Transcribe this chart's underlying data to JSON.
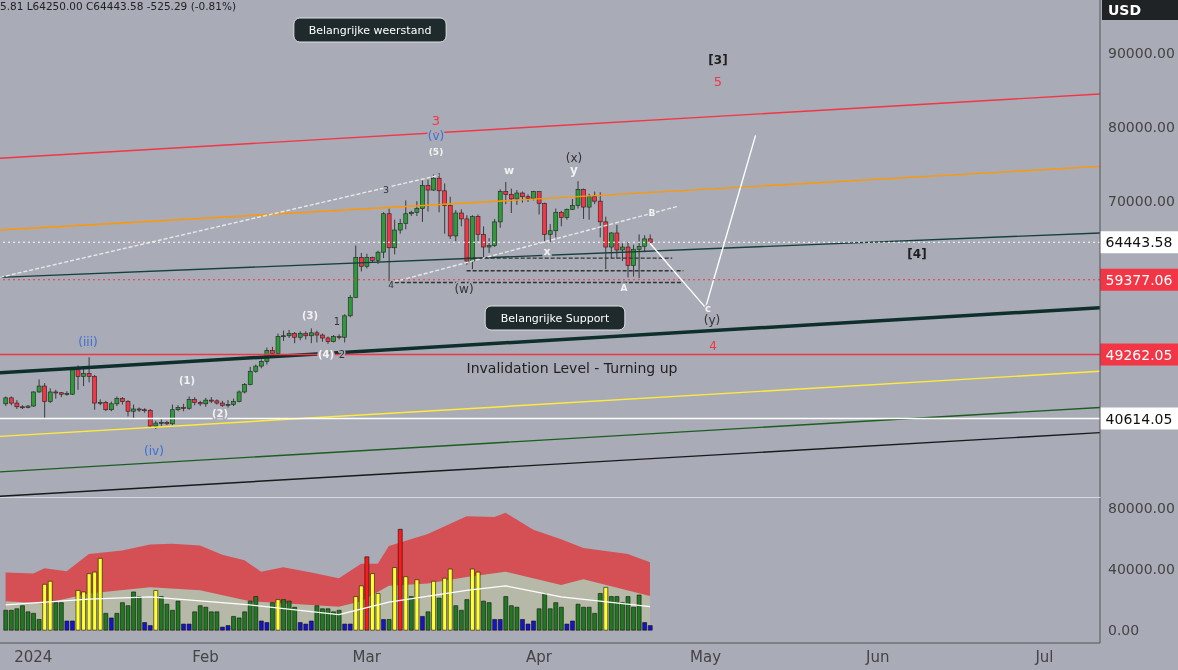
{
  "chart_data": [
    {
      "type": "candlestick",
      "title": "5.81 L64250.00 C64443.58 -525.29 (-0.81%)",
      "ylabel": "USD",
      "xlim": [
        "2023-12-26",
        "2024-07-11"
      ],
      "ylim": [
        30000,
        97200
      ],
      "yticks": [
        {
          "value": 70000,
          "label": "70000.00"
        },
        {
          "value": 80000,
          "label": "80000.00"
        },
        {
          "value": 90000,
          "label": "90000.00"
        }
      ],
      "tick_labels": "y",
      "x": [
        "2023-12-27",
        "2023-12-28",
        "2023-12-29",
        "2023-12-30",
        "2023-12-31",
        "2024-01-01",
        "2024-01-02",
        "2024-01-03",
        "2024-01-04",
        "2024-01-05",
        "2024-01-06",
        "2024-01-07",
        "2024-01-08",
        "2024-01-09",
        "2024-01-10",
        "2024-01-11",
        "2024-01-12",
        "2024-01-13",
        "2024-01-14",
        "2024-01-15",
        "2024-01-16",
        "2024-01-17",
        "2024-01-18",
        "2024-01-19",
        "2024-01-20",
        "2024-01-21",
        "2024-01-22",
        "2024-01-23",
        "2024-01-24",
        "2024-01-25",
        "2024-01-26",
        "2024-01-27",
        "2024-01-28",
        "2024-01-29",
        "2024-01-30",
        "2024-01-31",
        "2024-02-01",
        "2024-02-02",
        "2024-02-03",
        "2024-02-04",
        "2024-02-05",
        "2024-02-06",
        "2024-02-07",
        "2024-02-08",
        "2024-02-09",
        "2024-02-10",
        "2024-02-11",
        "2024-02-12",
        "2024-02-13",
        "2024-02-14",
        "2024-02-15",
        "2024-02-16",
        "2024-02-17",
        "2024-02-18",
        "2024-02-19",
        "2024-02-20",
        "2024-02-21",
        "2024-02-22",
        "2024-02-23",
        "2024-02-24",
        "2024-02-25",
        "2024-02-26",
        "2024-02-27",
        "2024-02-28",
        "2024-02-29",
        "2024-03-01",
        "2024-03-02",
        "2024-03-03",
        "2024-03-04",
        "2024-03-05",
        "2024-03-06",
        "2024-03-07",
        "2024-03-08",
        "2024-03-09",
        "2024-03-10",
        "2024-03-11",
        "2024-03-12",
        "2024-03-13",
        "2024-03-14",
        "2024-03-15",
        "2024-03-16",
        "2024-03-17",
        "2024-03-18",
        "2024-03-19",
        "2024-03-20",
        "2024-03-21",
        "2024-03-22",
        "2024-03-23",
        "2024-03-24",
        "2024-03-25",
        "2024-03-26",
        "2024-03-27",
        "2024-03-28",
        "2024-03-29",
        "2024-03-30",
        "2024-03-31",
        "2024-04-01",
        "2024-04-02",
        "2024-04-03",
        "2024-04-04",
        "2024-04-05",
        "2024-04-06",
        "2024-04-07",
        "2024-04-08",
        "2024-04-09",
        "2024-04-10",
        "2024-04-11",
        "2024-04-12",
        "2024-04-13",
        "2024-04-14",
        "2024-04-15",
        "2024-04-16",
        "2024-04-17",
        "2024-04-18",
        "2024-04-19",
        "2024-04-20",
        "2024-04-21"
      ],
      "ohlc": [
        [
          42600,
          43600,
          42300,
          43400
        ],
        [
          43400,
          43600,
          42400,
          42700
        ],
        [
          42700,
          43100,
          41900,
          42200
        ],
        [
          42200,
          42400,
          41900,
          42100
        ],
        [
          42100,
          42400,
          42000,
          42300
        ],
        [
          42300,
          44300,
          42200,
          44200
        ],
        [
          44200,
          45900,
          44100,
          45000
        ],
        [
          45000,
          45400,
          40700,
          42900
        ],
        [
          42900,
          44700,
          42700,
          44200
        ],
        [
          44200,
          44500,
          43300,
          44100
        ],
        [
          44100,
          44200,
          43500,
          43900
        ],
        [
          43900,
          44300,
          43700,
          44000
        ],
        [
          43900,
          47300,
          43800,
          47200
        ],
        [
          47200,
          47800,
          44500,
          46300
        ],
        [
          46300,
          47300,
          45000,
          46700
        ],
        [
          46700,
          48900,
          45500,
          46300
        ],
        [
          46300,
          46500,
          41800,
          42700
        ],
        [
          42700,
          43200,
          42400,
          42800
        ],
        [
          42800,
          43000,
          41600,
          41800
        ],
        [
          41800,
          42900,
          41600,
          42600
        ],
        [
          42600,
          43600,
          42300,
          43300
        ],
        [
          43300,
          43500,
          42500,
          42900
        ],
        [
          42900,
          43100,
          40900,
          41600
        ],
        [
          41600,
          42500,
          40600,
          41900
        ],
        [
          41900,
          42100,
          41500,
          41800
        ],
        [
          41800,
          42000,
          41400,
          41700
        ],
        [
          41700,
          41900,
          39500,
          39600
        ],
        [
          39600,
          40300,
          39200,
          40000
        ],
        [
          40000,
          40600,
          39600,
          40100
        ],
        [
          40100,
          40300,
          39700,
          39900
        ],
        [
          39900,
          42500,
          39700,
          41800
        ],
        [
          41800,
          42400,
          41600,
          42100
        ],
        [
          42100,
          42600,
          41600,
          42000
        ],
        [
          42000,
          43600,
          41800,
          43200
        ],
        [
          43200,
          43500,
          42400,
          42800
        ],
        [
          42800,
          43000,
          42300,
          42600
        ],
        [
          42600,
          43400,
          42200,
          43100
        ],
        [
          43100,
          43500,
          42700,
          43000
        ],
        [
          43000,
          43200,
          42500,
          42700
        ],
        [
          42700,
          43000,
          42200,
          42400
        ],
        [
          42400,
          43100,
          42100,
          42500
        ],
        [
          42500,
          43300,
          42300,
          42900
        ],
        [
          42900,
          44400,
          42800,
          44200
        ],
        [
          44200,
          45400,
          44000,
          45200
        ],
        [
          45200,
          47600,
          45100,
          47000
        ],
        [
          47000,
          47900,
          46800,
          47700
        ],
        [
          47700,
          48600,
          47400,
          48300
        ],
        [
          48300,
          50200,
          47900,
          49800
        ],
        [
          49800,
          50300,
          48800,
          49400
        ],
        [
          49400,
          52100,
          49200,
          51700
        ],
        [
          51700,
          52500,
          51100,
          51800
        ],
        [
          51800,
          52600,
          51500,
          52100
        ],
        [
          52100,
          52300,
          50800,
          51600
        ],
        [
          51600,
          52400,
          51200,
          52100
        ],
        [
          52100,
          52400,
          51300,
          51800
        ],
        [
          51800,
          52800,
          50800,
          52200
        ],
        [
          52200,
          52500,
          50900,
          51900
        ],
        [
          51900,
          52100,
          51000,
          51500
        ],
        [
          51500,
          51700,
          50700,
          51000
        ],
        [
          51000,
          51900,
          50900,
          51700
        ],
        [
          51700,
          52000,
          51300,
          51600
        ],
        [
          51600,
          54700,
          50900,
          54500
        ],
        [
          54500,
          57300,
          54300,
          57000
        ],
        [
          57000,
          64000,
          56900,
          62400
        ],
        [
          62400,
          63000,
          60500,
          61200
        ],
        [
          61200,
          62900,
          60900,
          62400
        ],
        [
          62400,
          62500,
          61700,
          62000
        ],
        [
          62000,
          63300,
          61500,
          63100
        ],
        [
          63100,
          68500,
          62300,
          68300
        ],
        [
          68300,
          69000,
          59200,
          63700
        ],
        [
          63700,
          67500,
          62800,
          66100
        ],
        [
          66100,
          67600,
          65600,
          67000
        ],
        [
          67000,
          70100,
          66200,
          68300
        ],
        [
          68300,
          68700,
          68000,
          68500
        ],
        [
          68500,
          70000,
          68000,
          69000
        ],
        [
          69000,
          72800,
          67200,
          72100
        ],
        [
          72100,
          72900,
          68600,
          71500
        ],
        [
          71500,
          73600,
          71400,
          73100
        ],
        [
          73100,
          73800,
          68500,
          71400
        ],
        [
          71400,
          72400,
          65600,
          69400
        ],
        [
          69400,
          70600,
          64900,
          65300
        ],
        [
          65300,
          68800,
          64600,
          68400
        ],
        [
          68400,
          68900,
          66600,
          67600
        ],
        [
          67600,
          68100,
          61400,
          61900
        ],
        [
          61900,
          68100,
          60800,
          67900
        ],
        [
          67900,
          68200,
          64600,
          65500
        ],
        [
          65500,
          66600,
          62300,
          63800
        ],
        [
          63800,
          65000,
          63000,
          64000
        ],
        [
          64000,
          67600,
          63800,
          67200
        ],
        [
          67200,
          71600,
          66400,
          71300
        ],
        [
          71300,
          72600,
          69600,
          70900
        ],
        [
          70900,
          71700,
          68400,
          70300
        ],
        [
          70300,
          71500,
          69500,
          71100
        ],
        [
          71100,
          71300,
          69800,
          70600
        ],
        [
          70600,
          70900,
          69900,
          70400
        ],
        [
          70400,
          71400,
          70100,
          71300
        ],
        [
          71300,
          71300,
          68200,
          69700
        ],
        [
          69700,
          69800,
          64600,
          65500
        ],
        [
          65500,
          66900,
          64500,
          66000
        ],
        [
          66000,
          69000,
          65100,
          68500
        ],
        [
          68500,
          68700,
          66600,
          67800
        ],
        [
          67800,
          69000,
          67500,
          68900
        ],
        [
          68900,
          70300,
          68800,
          69400
        ],
        [
          69400,
          72700,
          69000,
          71600
        ],
        [
          71600,
          71700,
          67600,
          69200
        ],
        [
          69200,
          71000,
          67500,
          70600
        ],
        [
          70600,
          71300,
          69600,
          70000
        ],
        [
          70000,
          71200,
          65100,
          67200
        ],
        [
          67200,
          67900,
          60800,
          63800
        ],
        [
          63800,
          65800,
          62300,
          65700
        ],
        [
          65700,
          66800,
          62200,
          63400
        ],
        [
          63400,
          64300,
          61900,
          63800
        ],
        [
          63800,
          64500,
          59700,
          61300
        ],
        [
          61300,
          64100,
          59800,
          63500
        ],
        [
          63500,
          65500,
          59600,
          63900
        ],
        [
          63900,
          65400,
          63100,
          64900
        ],
        [
          64900,
          65500,
          64250,
          64443.58
        ]
      ],
      "series": [
        {
          "type": "line",
          "x": [
            "2023-12-26",
            "2024-07-11"
          ],
          "values": [
            75800,
            84500
          ],
          "color": "#f23645",
          "line_style": "solid"
        },
        {
          "type": "line",
          "x": [
            "2023-12-26",
            "2024-07-11"
          ],
          "values": [
            66100,
            74700
          ],
          "color": "#ff9800",
          "line_style": "solid"
        },
        {
          "type": "line",
          "x": [
            "2023-12-26",
            "2024-07-11"
          ],
          "values": [
            59700,
            65700
          ],
          "color": "#17403b",
          "line_style": "solid"
        },
        {
          "type": "line",
          "x": [
            "2023-12-26",
            "2024-07-11"
          ],
          "values": [
            46800,
            55600
          ],
          "color": "#0f2f2b",
          "line_style": "solid"
        },
        {
          "type": "line",
          "x": [
            "2023-12-26",
            "2024-07-11"
          ],
          "values": [
            38200,
            47000
          ],
          "color": "#ffeb3b",
          "line_style": "solid"
        },
        {
          "type": "line",
          "x": [
            "2023-12-26",
            "2024-07-11"
          ],
          "values": [
            33400,
            42100
          ],
          "color": "#1b5e20",
          "line_style": "solid"
        },
        {
          "type": "line",
          "x": [
            "2023-12-26",
            "2024-07-11"
          ],
          "values": [
            30100,
            38700
          ],
          "color": "#1a1a1a",
          "line_style": "solid"
        },
        {
          "type": "line",
          "x": [
            "2023-12-26",
            "2024-03-14"
          ],
          "values": [
            59700,
            73500
          ],
          "color": "#e8e8e8",
          "line_style": "dashed"
        },
        {
          "type": "line",
          "x": [
            "2024-03-05",
            "2024-04-26"
          ],
          "values": [
            58900,
            69300
          ],
          "color": "#e8e8e8",
          "line_style": "dashed"
        },
        {
          "type": "line",
          "x": [
            "2024-03-19",
            "2024-04-25"
          ],
          "values": [
            62300,
            62300
          ],
          "color": "#333333",
          "line_style": "dashed"
        },
        {
          "type": "line",
          "x": [
            "2024-03-19",
            "2024-04-27"
          ],
          "values": [
            60600,
            60600
          ],
          "color": "#333333",
          "line_style": "dashed"
        },
        {
          "type": "line",
          "x": [
            "2024-03-05",
            "2024-04-27"
          ],
          "values": [
            59000,
            59000
          ],
          "color": "#333333",
          "line_style": "dashed"
        },
        {
          "type": "line",
          "x": [
            "2024-04-21",
            "2024-05-01",
            "2024-05-10"
          ],
          "values": [
            64300,
            55600,
            78900
          ],
          "color": "#ffffff",
          "line_style": "solid"
        }
      ],
      "ref_lines": [
        {
          "axis": "y",
          "value": 64443.58,
          "label": "64443.58",
          "color": "#ffffff",
          "line_style": "dotted"
        },
        {
          "axis": "y",
          "value": 59377.06,
          "label": "59377.06",
          "color": "#f23645",
          "line_style": "dotted"
        },
        {
          "axis": "y",
          "value": 49262.05,
          "label": "49262.05",
          "color": "#f23645",
          "line_style": "solid"
        },
        {
          "axis": "y",
          "value": 40614.05,
          "label": "40614.05",
          "color": "#ffffff",
          "line_style": "solid"
        }
      ],
      "annotations": [
        "Belangrijke weerstand",
        "Belangrijke Support",
        "Invalidation Level - Turning up",
        "[3]",
        "5",
        "3",
        "(v)",
        "(5)",
        "3",
        "w",
        "(x)",
        "y",
        "B",
        "x",
        "(w)",
        "4",
        "A",
        "c",
        "(y)",
        "4",
        "[4]",
        "(iii)",
        "(1)",
        "(2)",
        "(iv)",
        "(3)",
        "1",
        "(4)",
        "2"
      ]
    },
    {
      "type": "bar",
      "xlim": [
        "2023-12-26",
        "2024-07-11"
      ],
      "ylim": [
        -8400,
        86500
      ],
      "xticks": [
        {
          "value": "2024-01-01",
          "label": "2024"
        },
        {
          "value": "2024-02-01",
          "label": "Feb"
        },
        {
          "value": "2024-03-01",
          "label": "Mar"
        },
        {
          "value": "2024-04-01",
          "label": "Apr"
        },
        {
          "value": "2024-05-01",
          "label": "May"
        },
        {
          "value": "2024-06-01",
          "label": "Jun"
        },
        {
          "value": "2024-07-01",
          "label": "Jul"
        }
      ],
      "yticks": [
        {
          "value": 0,
          "label": "0.00"
        },
        {
          "value": 40000,
          "label": "40000.00"
        },
        {
          "value": 80000,
          "label": "80000.00"
        }
      ],
      "x": [
        "2023-12-27",
        "2023-12-28",
        "2023-12-29",
        "2023-12-30",
        "2023-12-31",
        "2024-01-01",
        "2024-01-02",
        "2024-01-03",
        "2024-01-04",
        "2024-01-05",
        "2024-01-06",
        "2024-01-07",
        "2024-01-08",
        "2024-01-09",
        "2024-01-10",
        "2024-01-11",
        "2024-01-12",
        "2024-01-13",
        "2024-01-14",
        "2024-01-15",
        "2024-01-16",
        "2024-01-17",
        "2024-01-18",
        "2024-01-19",
        "2024-01-20",
        "2024-01-21",
        "2024-01-22",
        "2024-01-23",
        "2024-01-24",
        "2024-01-25",
        "2024-01-26",
        "2024-01-27",
        "2024-01-28",
        "2024-01-29",
        "2024-01-30",
        "2024-01-31",
        "2024-02-01",
        "2024-02-02",
        "2024-02-03",
        "2024-02-04",
        "2024-02-05",
        "2024-02-06",
        "2024-02-07",
        "2024-02-08",
        "2024-02-09",
        "2024-02-10",
        "2024-02-11",
        "2024-02-12",
        "2024-02-13",
        "2024-02-14",
        "2024-02-15",
        "2024-02-16",
        "2024-02-17",
        "2024-02-18",
        "2024-02-19",
        "2024-02-20",
        "2024-02-21",
        "2024-02-22",
        "2024-02-23",
        "2024-02-24",
        "2024-02-25",
        "2024-02-26",
        "2024-02-27",
        "2024-02-28",
        "2024-02-29",
        "2024-03-01",
        "2024-03-02",
        "2024-03-03",
        "2024-03-04",
        "2024-03-05",
        "2024-03-06",
        "2024-03-07",
        "2024-03-08",
        "2024-03-09",
        "2024-03-10",
        "2024-03-11",
        "2024-03-12",
        "2024-03-13",
        "2024-03-14",
        "2024-03-15",
        "2024-03-16",
        "2024-03-17",
        "2024-03-18",
        "2024-03-19",
        "2024-03-20",
        "2024-03-21",
        "2024-03-22",
        "2024-03-23",
        "2024-03-24",
        "2024-03-25",
        "2024-03-26",
        "2024-03-27",
        "2024-03-28",
        "2024-03-29",
        "2024-03-30",
        "2024-03-31",
        "2024-04-01",
        "2024-04-02",
        "2024-04-03",
        "2024-04-04",
        "2024-04-05",
        "2024-04-06",
        "2024-04-07",
        "2024-04-08",
        "2024-04-09",
        "2024-04-10",
        "2024-04-11",
        "2024-04-12",
        "2024-04-13",
        "2024-04-14",
        "2024-04-15",
        "2024-04-16",
        "2024-04-17",
        "2024-04-18",
        "2024-04-19",
        "2024-04-20",
        "2024-04-21"
      ],
      "values": [
        13000,
        13000,
        14000,
        16000,
        12000,
        11000,
        7000,
        30000,
        32000,
        18000,
        18000,
        6000,
        6000,
        26000,
        25000,
        37000,
        38000,
        47000,
        11000,
        8000,
        11000,
        18000,
        16000,
        25000,
        22000,
        5000,
        3000,
        26000,
        22000,
        17000,
        13000,
        19000,
        4000,
        4000,
        12000,
        16000,
        15000,
        12000,
        12000,
        2000,
        3000,
        9000,
        8000,
        12000,
        19000,
        22000,
        6000,
        5000,
        18000,
        20000,
        20000,
        19000,
        15000,
        5000,
        4000,
        6000,
        16000,
        14000,
        14000,
        12000,
        13000,
        4000,
        4000,
        22000,
        29000,
        48000,
        37000,
        24000,
        7000,
        7000,
        41000,
        66000,
        35000,
        22000,
        33000,
        9000,
        12000,
        32000,
        21000,
        34000,
        40000,
        16000,
        13000,
        20000,
        40000,
        38000,
        19000,
        18000,
        7000,
        7000,
        22000,
        16000,
        15000,
        7000,
        4000,
        6000,
        14000,
        24000,
        14000,
        18000,
        15000,
        4000,
        6000,
        17000,
        15000,
        15000,
        11000,
        24000,
        28000,
        22000,
        22000,
        18000,
        22000,
        15000,
        23000,
        5000,
        3000
      ],
      "colors": [
        "#1f7a1f",
        "#1f7a1f",
        "#1f7a1f",
        "#1f7a1f",
        "#1f7a1f",
        "#1f7a1f",
        "#1f7a1f",
        "#ffff33",
        "#ffff33",
        "#1f7a1f",
        "#1f7a1f",
        "#1414c8",
        "#1414c8",
        "#ffff33",
        "#ffff33",
        "#ffff33",
        "#ffff33",
        "#ffff33",
        "#1f7a1f",
        "#1414c8",
        "#1f7a1f",
        "#1f7a1f",
        "#1f7a1f",
        "#1f7a1f",
        "#1f7a1f",
        "#1414c8",
        "#1414c8",
        "#ffff33",
        "#1f7a1f",
        "#1f7a1f",
        "#1f7a1f",
        "#1f7a1f",
        "#1414c8",
        "#1414c8",
        "#1f7a1f",
        "#1f7a1f",
        "#1f7a1f",
        "#1f7a1f",
        "#1f7a1f",
        "#1414c8",
        "#1414c8",
        "#1f7a1f",
        "#1f7a1f",
        "#1f7a1f",
        "#1f7a1f",
        "#1f7a1f",
        "#1414c8",
        "#1414c8",
        "#1f7a1f",
        "#ffff33",
        "#1f7a1f",
        "#1f7a1f",
        "#1f7a1f",
        "#1414c8",
        "#1414c8",
        "#1414c8",
        "#1f7a1f",
        "#1f7a1f",
        "#1f7a1f",
        "#1f7a1f",
        "#1f7a1f",
        "#1414c8",
        "#1414c8",
        "#ffff33",
        "#ffff33",
        "#ff1a1a",
        "#ffff33",
        "#ffff33",
        "#1414c8",
        "#1f7a1f",
        "#ffff33",
        "#ff1a1a",
        "#ffff33",
        "#1f7a1f",
        "#ffff33",
        "#1414c8",
        "#1f7a1f",
        "#ffff33",
        "#1f7a1f",
        "#ffff33",
        "#ffff33",
        "#1f7a1f",
        "#1f7a1f",
        "#1f7a1f",
        "#ffff33",
        "#ffff33",
        "#1f7a1f",
        "#1f7a1f",
        "#1414c8",
        "#1414c8",
        "#1f7a1f",
        "#1f7a1f",
        "#1f7a1f",
        "#1414c8",
        "#1414c8",
        "#1414c8",
        "#1f7a1f",
        "#1f7a1f",
        "#1f7a1f",
        "#1f7a1f",
        "#1f7a1f",
        "#1414c8",
        "#1414c8",
        "#1f7a1f",
        "#1f7a1f",
        "#1f7a1f",
        "#1f7a1f",
        "#1f7a1f",
        "#ffff33",
        "#1f7a1f",
        "#1f7a1f",
        "#1f7a1f",
        "#1f7a1f",
        "#1f7a1f",
        "#1f7a1f",
        "#1414c8",
        "#1414c8"
      ],
      "series": [
        {
          "type": "area",
          "color": "#d45055",
          "x": [
            "2023-12-27",
            "2024-01-01",
            "2024-01-03",
            "2024-01-07",
            "2024-01-11",
            "2024-01-17",
            "2024-01-22",
            "2024-01-26",
            "2024-01-31",
            "2024-02-04",
            "2024-02-08",
            "2024-02-11",
            "2024-02-15",
            "2024-02-20",
            "2024-02-25",
            "2024-02-29",
            "2024-03-03",
            "2024-03-05",
            "2024-03-12",
            "2024-03-19",
            "2024-03-24",
            "2024-03-26",
            "2024-03-31",
            "2024-04-05",
            "2024-04-09",
            "2024-04-17",
            "2024-04-21"
          ],
          "values": [
            37700,
            37100,
            40600,
            38600,
            49900,
            52200,
            56000,
            56500,
            55400,
            49300,
            45800,
            38300,
            41200,
            37700,
            33900,
            43500,
            43500,
            55100,
            62900,
            74500,
            74000,
            76900,
            65800,
            59500,
            53700,
            49900,
            44400
          ]
        },
        {
          "type": "area",
          "color": "#b6b9a8",
          "x": [
            "2023-12-27",
            "2024-01-03",
            "2024-01-11",
            "2024-01-22",
            "2024-01-31",
            "2024-02-09",
            "2024-02-20",
            "2024-02-25",
            "2024-02-29",
            "2024-03-05",
            "2024-03-12",
            "2024-03-19",
            "2024-03-26",
            "2024-04-05",
            "2024-04-09",
            "2024-04-21"
          ],
          "values": [
            18900,
            17400,
            24000,
            28100,
            26100,
            18900,
            16500,
            15400,
            18900,
            29000,
            30500,
            34800,
            38300,
            29600,
            33400,
            22300
          ]
        },
        {
          "type": "line",
          "color": "#ffffff",
          "x": [
            "2023-12-27",
            "2024-01-11",
            "2024-01-22",
            "2024-02-09",
            "2024-02-25",
            "2024-03-05",
            "2024-03-19",
            "2024-03-26",
            "2024-04-05",
            "2024-04-21"
          ],
          "values": [
            16500,
            20300,
            21800,
            16500,
            10200,
            18300,
            26100,
            29000,
            21800,
            15400
          ]
        }
      ]
    }
  ]
}
